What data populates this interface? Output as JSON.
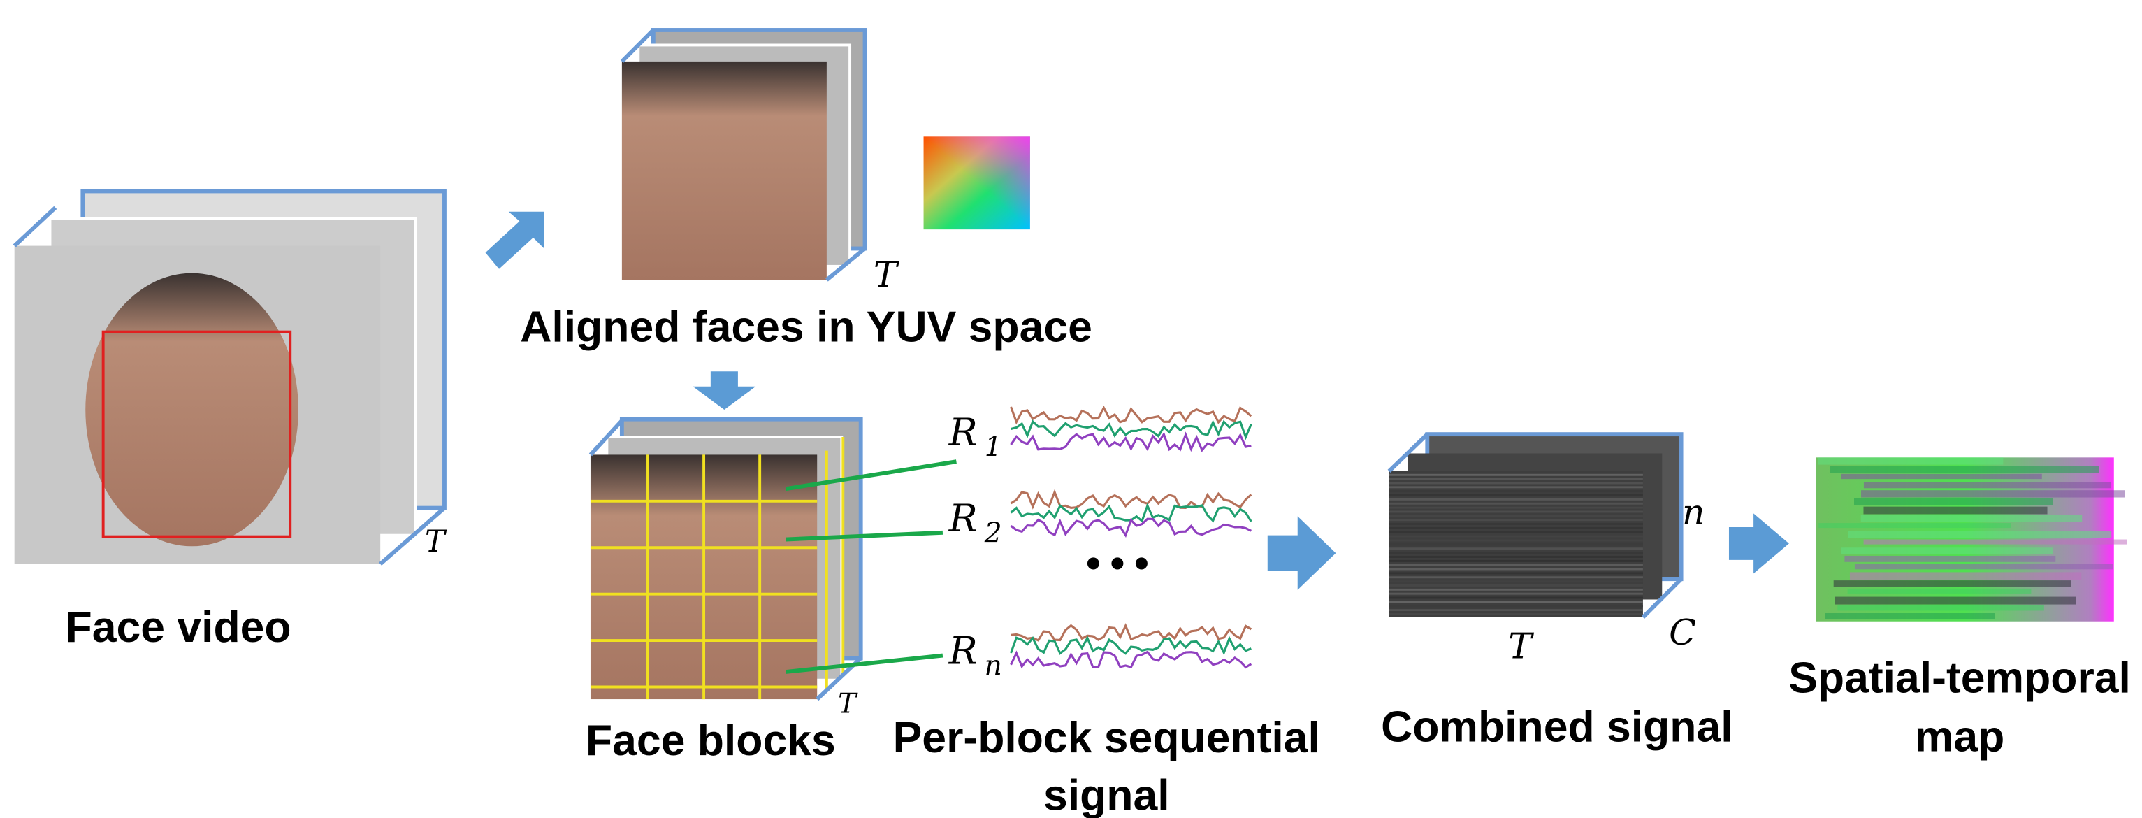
{
  "stages": {
    "face_video": "Face video",
    "aligned_faces": "Aligned faces in YUV space",
    "face_blocks": "Face blocks",
    "per_block_signal": [
      "Per-block sequential",
      "signal"
    ],
    "combined_signal": "Combined signal",
    "spatial_temporal_map": [
      "Spatial-temporal",
      "map"
    ]
  },
  "symbols": {
    "time": "T",
    "blocks": "n",
    "channels": "C",
    "ellipsis": "•••",
    "region": "R",
    "region_subscripts": [
      "1",
      "2",
      "n"
    ]
  }
}
